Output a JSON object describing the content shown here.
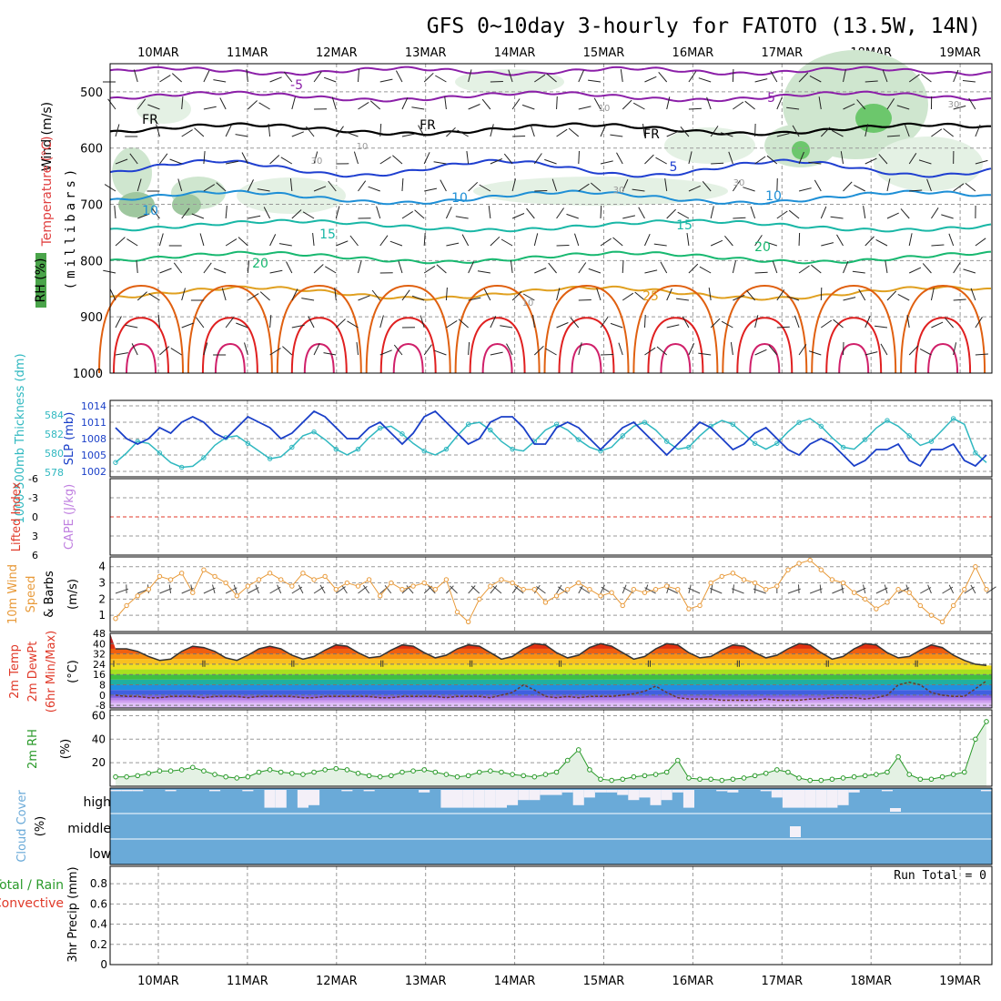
{
  "title": "GFS 0~10day 3-hourly for FATOTO (13.5W, 14N)",
  "dates": [
    "10MAR",
    "11MAR",
    "12MAR",
    "13MAR",
    "14MAR",
    "15MAR",
    "16MAR",
    "17MAR",
    "18MAR",
    "19MAR"
  ],
  "colors": {
    "purple": "#8b1fa8",
    "dark_blue": "#1f3fd0",
    "mid_blue": "#1e8fd6",
    "teal": "#19b7a6",
    "green_iso": "#18b870",
    "orange": "#e0a020",
    "deep_orange": "#e06010",
    "red": "#e02020",
    "magenta": "#d0206a",
    "slp": "#1a3fc8",
    "thickness": "#30b8c0",
    "wind10": "#e89a3a",
    "rh2m": "#2a9a2a",
    "cloud": "#6aaad8",
    "rain": "#2a9a2a",
    "convective": "#e03a2a"
  },
  "panels": {
    "upper_air": {
      "ylabels": [
        "Wind (m/s)",
        "Temperature (°C)",
        "RH (%)"
      ],
      "ylabel_center": "(millibars)",
      "yticks": [
        "500",
        "600",
        "700",
        "800",
        "900",
        "1000"
      ],
      "isotherm_labels": [
        "-5",
        "-5",
        "FR",
        "FR",
        "FR",
        "5",
        "10",
        "10",
        "10",
        "15",
        "15",
        "20",
        "20",
        "25"
      ],
      "rh_labels": [
        "30",
        "30",
        "30",
        "10",
        "10",
        "30",
        "10"
      ]
    },
    "pressure": {
      "ylabel_left": "1000-500mb Thickness (dm)",
      "ylabel_right": "SLP (mb)",
      "thickness_ticks": [
        "584",
        "582",
        "580",
        "578"
      ],
      "slp_ticks": [
        "1014",
        "1011",
        "1008",
        "1005",
        "1002"
      ]
    },
    "stability": {
      "ylabel_left": "Lifted Index",
      "ylabel_right": "CAPE (J/kg)",
      "yticks": [
        "-6",
        "-3",
        "0",
        "3",
        "6"
      ]
    },
    "wind10": {
      "ylabel_a": "10m Wind",
      "ylabel_b": "Speed",
      "ylabel_c": "& Barbs",
      "unit": "(m/s)",
      "yticks": [
        "4",
        "3",
        "2",
        "1"
      ]
    },
    "temp2m": {
      "ylabel_a": "2m Temp",
      "ylabel_b": "2m DewPt",
      "ylabel_c": "(6hr Min/Max)",
      "unit": "(°C)",
      "yticks": [
        "48",
        "40",
        "32",
        "24",
        "16",
        "8",
        "0",
        "-8"
      ]
    },
    "rh2m": {
      "ylabel": "2m RH",
      "unit": "(%)",
      "yticks": [
        "60",
        "40",
        "20"
      ]
    },
    "cloud": {
      "ylabel": "Cloud Cover",
      "unit": "(%)",
      "levels": [
        "high",
        "middle",
        "low"
      ]
    },
    "precip": {
      "ylabel_a": "Total / Rain",
      "ylabel_b": "Convective",
      "ylabel_c": "3hr Precip (mm)",
      "yticks": [
        "0.8",
        "0.6",
        "0.4",
        "0.2",
        "0"
      ],
      "run_total": "Run Total = 0"
    }
  },
  "chart_data": [
    {
      "type": "line",
      "name": "SLP",
      "x_axis": "time (3-hourly, 10MAR–19MAR)",
      "ylim": [
        1002,
        1014
      ],
      "values": [
        1010,
        1008,
        1007,
        1008,
        1010,
        1009,
        1011,
        1012,
        1011,
        1009,
        1008,
        1010,
        1012,
        1011,
        1010,
        1008,
        1009,
        1011,
        1013,
        1012,
        1010,
        1008,
        1008,
        1010,
        1011,
        1009,
        1007,
        1009,
        1012,
        1013,
        1011,
        1009,
        1007,
        1008,
        1011,
        1012,
        1012,
        1010,
        1007,
        1007,
        1010,
        1011,
        1010,
        1008,
        1006,
        1008,
        1010,
        1011,
        1009,
        1007,
        1005,
        1007,
        1009,
        1011,
        1010,
        1008,
        1006,
        1007,
        1009,
        1010,
        1008,
        1006,
        1005,
        1007,
        1008,
        1007,
        1005,
        1003,
        1004,
        1006,
        1006,
        1007,
        1004,
        1003,
        1006,
        1006,
        1007,
        1004,
        1003,
        1005
      ]
    },
    {
      "type": "line",
      "name": "1000-500mb Thickness",
      "ylim": [
        578,
        584
      ],
      "values": [
        579.0,
        580.0,
        581.2,
        581.0,
        580.0,
        579.0,
        578.5,
        578.6,
        579.5,
        580.8,
        581.6,
        581.8,
        581.0,
        580.2,
        579.4,
        579.6,
        580.6,
        581.8,
        582.2,
        581.4,
        580.4,
        579.8,
        580.4,
        581.6,
        582.6,
        582.8,
        582.0,
        581.0,
        580.2,
        579.8,
        580.4,
        581.8,
        583.0,
        583.2,
        582.4,
        581.2,
        580.4,
        580.2,
        581.2,
        582.4,
        583.0,
        582.4,
        581.4,
        580.6,
        580.2,
        580.6,
        581.8,
        582.8,
        583.2,
        582.4,
        581.2,
        580.4,
        580.6,
        581.8,
        582.8,
        583.4,
        583.0,
        582.0,
        581.0,
        580.4,
        581.0,
        582.2,
        583.2,
        583.6,
        582.8,
        581.6,
        580.6,
        580.4,
        581.4,
        582.6,
        583.4,
        582.8,
        581.8,
        580.8,
        581.2,
        582.4,
        583.6,
        583.0,
        580.0,
        579.0
      ]
    },
    {
      "type": "line",
      "name": "10m Wind Speed",
      "ylim": [
        0,
        4.6
      ],
      "values": [
        0.8,
        1.6,
        2.2,
        2.6,
        3.4,
        3.2,
        3.6,
        2.4,
        3.8,
        3.4,
        3.0,
        2.2,
        2.8,
        3.2,
        3.6,
        3.2,
        2.8,
        3.6,
        3.2,
        3.4,
        2.6,
        3.0,
        2.8,
        3.2,
        2.2,
        3.0,
        2.6,
        2.8,
        3.0,
        2.6,
        3.2,
        1.2,
        0.6,
        2.0,
        2.8,
        3.2,
        3.0,
        2.6,
        2.6,
        1.8,
        2.2,
        2.6,
        3.0,
        2.6,
        2.2,
        2.4,
        1.6,
        2.6,
        2.4,
        2.6,
        2.8,
        2.6,
        1.4,
        1.6,
        3.0,
        3.4,
        3.6,
        3.2,
        3.0,
        2.6,
        2.8,
        3.8,
        4.2,
        4.4,
        3.8,
        3.2,
        3.0,
        2.4,
        2.0,
        1.4,
        1.8,
        2.6,
        2.4,
        1.6,
        1.0,
        0.6,
        1.6,
        2.6,
        4.0,
        2.6
      ]
    },
    {
      "type": "area",
      "name": "2m Temp",
      "ylim": [
        -8,
        48
      ],
      "values": [
        36,
        36,
        34,
        30,
        27,
        28,
        34,
        38,
        37,
        34,
        29,
        27,
        31,
        36,
        38,
        36,
        31,
        28,
        30,
        35,
        39,
        38,
        33,
        29,
        30,
        35,
        39,
        38,
        33,
        29,
        31,
        36,
        39,
        38,
        33,
        28,
        30,
        36,
        40,
        39,
        33,
        29,
        31,
        37,
        40,
        38,
        33,
        28,
        30,
        36,
        40,
        39,
        33,
        29,
        30,
        35,
        39,
        38,
        33,
        29,
        31,
        36,
        40,
        39,
        33,
        28,
        30,
        36,
        40,
        39,
        33,
        29,
        30,
        35,
        39,
        37,
        31,
        27,
        24,
        23
      ]
    },
    {
      "type": "line",
      "name": "2m DewPt",
      "ylim": [
        -8,
        48
      ],
      "values": [
        0,
        -1,
        -1,
        -2,
        -2,
        -1,
        -1,
        -1,
        -2,
        -1,
        -1,
        -1,
        -2,
        -1,
        -1,
        -1,
        -1,
        -2,
        -2,
        -1,
        -1,
        -1,
        -1,
        -1,
        -2,
        -2,
        -1,
        -1,
        -1,
        -1,
        -2,
        -1,
        -1,
        -1,
        -2,
        0,
        2,
        8,
        4,
        -1,
        -2,
        -1,
        -2,
        -1,
        -1,
        -1,
        0,
        1,
        3,
        7,
        2,
        -2,
        -3,
        -3,
        -3,
        -4,
        -4,
        -4,
        -4,
        -3,
        -4,
        -4,
        -4,
        -3,
        -3,
        -2,
        -2,
        -2,
        -3,
        -2,
        0,
        8,
        10,
        8,
        2,
        0,
        -1,
        -1,
        5,
        11
      ]
    },
    {
      "type": "area",
      "name": "2m RH",
      "ylim": [
        0,
        65
      ],
      "values": [
        8,
        8,
        9,
        11,
        13,
        13,
        14,
        16,
        13,
        10,
        8,
        7,
        8,
        12,
        14,
        12,
        11,
        10,
        12,
        14,
        15,
        14,
        11,
        9,
        8,
        9,
        12,
        13,
        14,
        12,
        10,
        8,
        9,
        12,
        13,
        12,
        10,
        9,
        8,
        10,
        12,
        22,
        31,
        14,
        6,
        5,
        6,
        8,
        9,
        10,
        12,
        22,
        7,
        6,
        6,
        5,
        6,
        7,
        9,
        11,
        14,
        12,
        7,
        5,
        5,
        6,
        7,
        8,
        9,
        10,
        12,
        25,
        10,
        6,
        6,
        8,
        10,
        12,
        40,
        55
      ]
    },
    {
      "type": "bar",
      "name": "Cloud Cover (high)",
      "values": [
        95,
        95,
        95,
        100,
        100,
        95,
        100,
        98,
        100,
        95,
        100,
        100,
        95,
        100,
        30,
        30,
        100,
        30,
        40,
        100,
        100,
        95,
        100,
        95,
        100,
        100,
        100,
        100,
        90,
        100,
        30,
        30,
        30,
        30,
        30,
        30,
        40,
        60,
        60,
        80,
        80,
        90,
        40,
        70,
        90,
        90,
        80,
        60,
        70,
        40,
        60,
        90,
        30,
        100,
        100,
        95,
        90,
        100,
        100,
        95,
        70,
        30,
        30,
        30,
        30,
        30,
        40,
        90,
        100,
        100,
        95,
        100,
        100,
        100,
        100,
        100,
        100,
        100,
        100,
        95
      ]
    },
    {
      "type": "bar",
      "name": "3hr Precip",
      "ylim": [
        0,
        1.0
      ],
      "values": [
        0,
        0,
        0,
        0,
        0,
        0,
        0,
        0,
        0,
        0,
        0,
        0,
        0,
        0,
        0,
        0,
        0,
        0,
        0,
        0,
        0,
        0,
        0,
        0,
        0,
        0,
        0,
        0,
        0,
        0,
        0,
        0,
        0,
        0,
        0,
        0,
        0,
        0,
        0,
        0,
        0,
        0,
        0,
        0,
        0,
        0,
        0,
        0,
        0,
        0,
        0,
        0,
        0,
        0,
        0,
        0,
        0,
        0,
        0,
        0,
        0,
        0,
        0,
        0,
        0,
        0,
        0,
        0,
        0,
        0,
        0,
        0,
        0,
        0,
        0,
        0,
        0,
        0,
        0,
        0
      ]
    }
  ]
}
